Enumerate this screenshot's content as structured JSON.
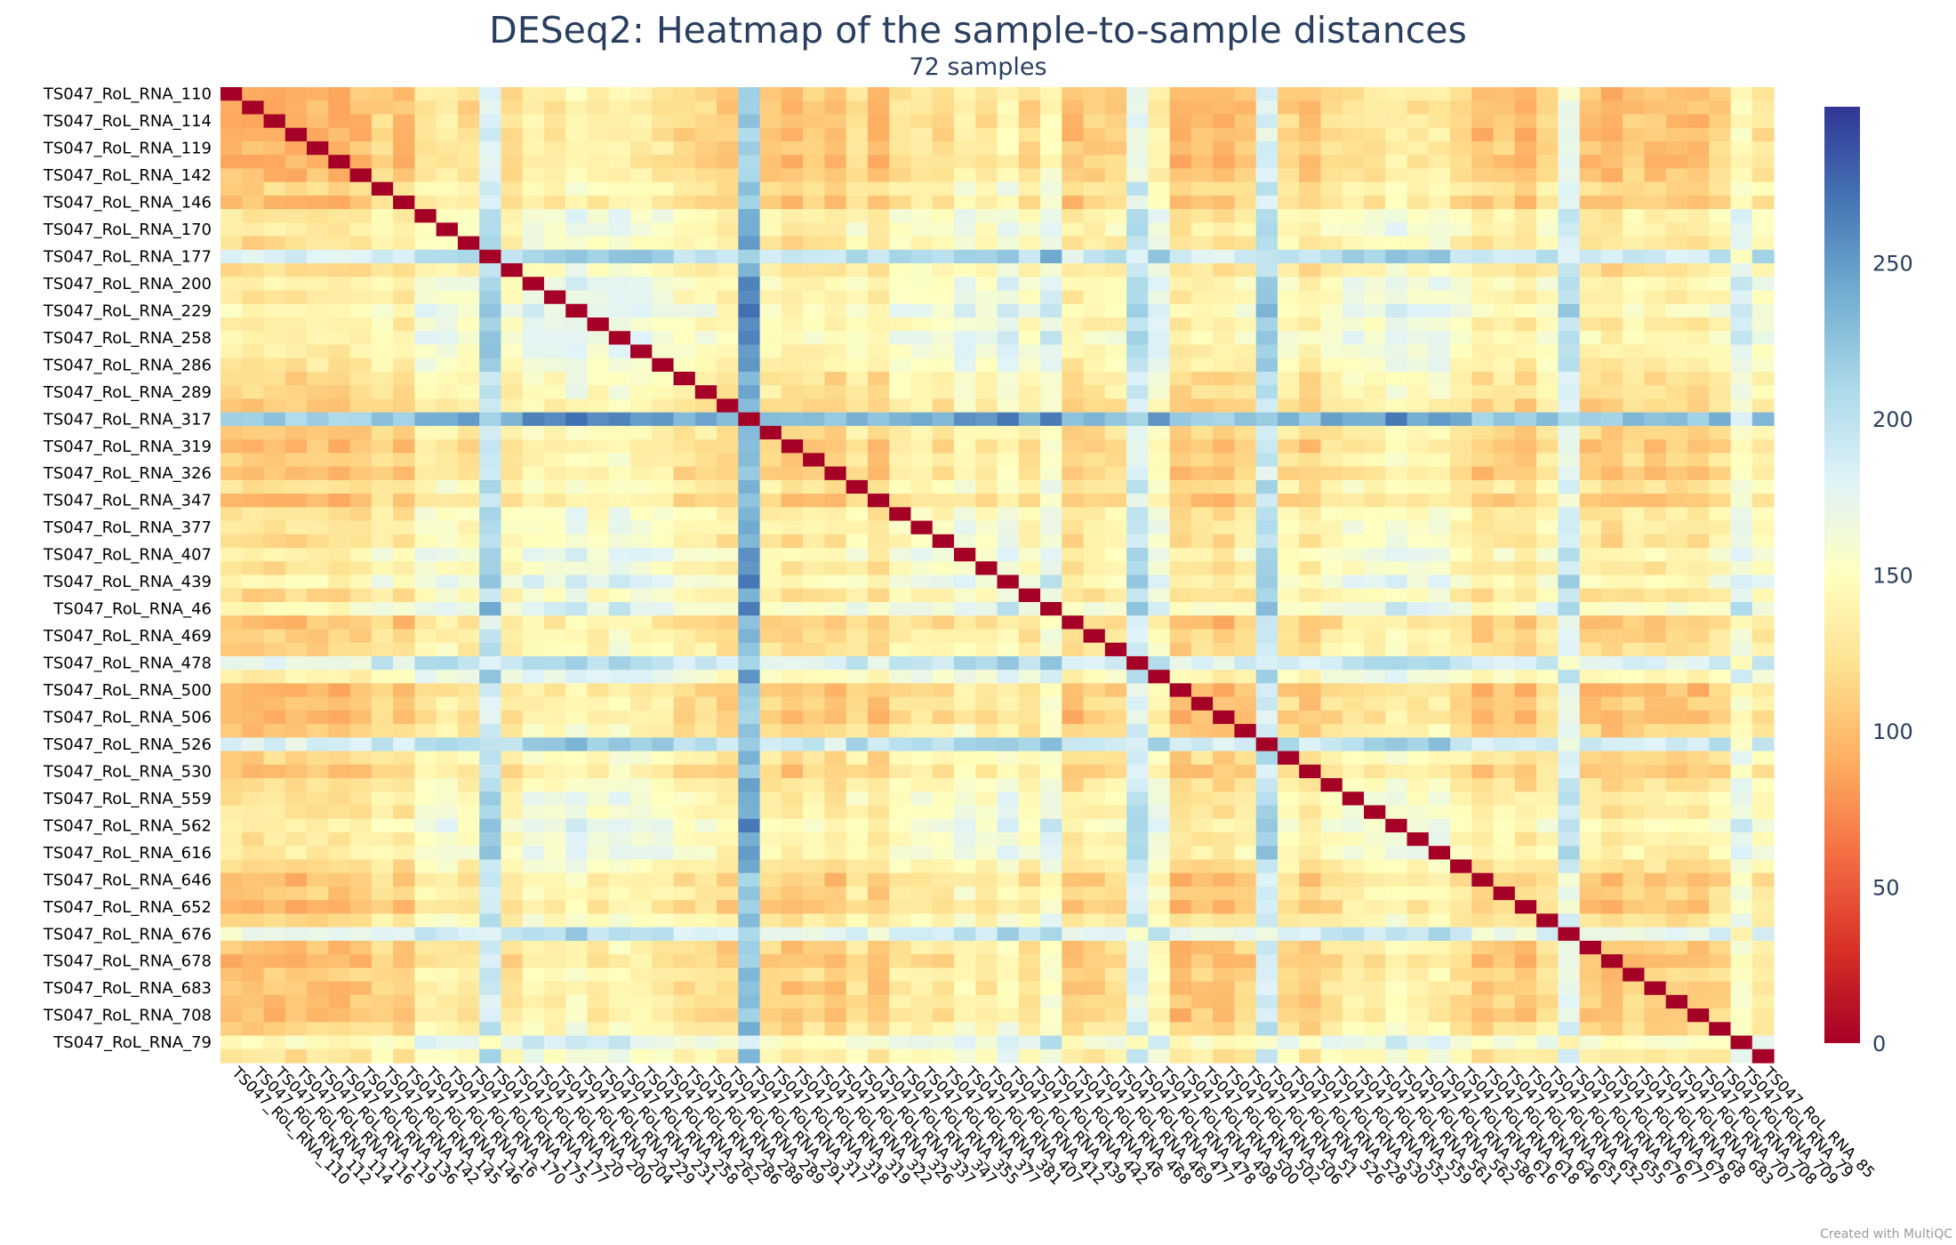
{
  "chart_data": {
    "type": "heatmap",
    "title": "DESeq2: Heatmap of the sample-to-sample distances",
    "subtitle": "72 samples",
    "credit": "Created with MultiQC",
    "colorscale": {
      "stops": [
        "#a50026",
        "#d73027",
        "#f46d43",
        "#fdae61",
        "#fee090",
        "#ffffbf",
        "#e0f3f8",
        "#abd9e9",
        "#74add1",
        "#4575b4",
        "#313695"
      ],
      "min": 0,
      "max": 300,
      "ticks": [
        0,
        50,
        100,
        150,
        200,
        250
      ]
    },
    "samples": [
      "TS047_RoL_RNA_110",
      "TS047_RoL_RNA_112",
      "TS047_RoL_RNA_114",
      "TS047_RoL_RNA_116",
      "TS047_RoL_RNA_119",
      "TS047_RoL_RNA_136",
      "TS047_RoL_RNA_142",
      "TS047_RoL_RNA_145",
      "TS047_RoL_RNA_146",
      "TS047_RoL_RNA_16",
      "TS047_RoL_RNA_170",
      "TS047_RoL_RNA_175",
      "TS047_RoL_RNA_177",
      "TS047_RoL_RNA_20",
      "TS047_RoL_RNA_200",
      "TS047_RoL_RNA_204",
      "TS047_RoL_RNA_229",
      "TS047_RoL_RNA_231",
      "TS047_RoL_RNA_258",
      "TS047_RoL_RNA_262",
      "TS047_RoL_RNA_286",
      "TS047_RoL_RNA_288",
      "TS047_RoL_RNA_289",
      "TS047_RoL_RNA_291",
      "TS047_RoL_RNA_317",
      "TS047_RoL_RNA_318",
      "TS047_RoL_RNA_319",
      "TS047_RoL_RNA_322",
      "TS047_RoL_RNA_326",
      "TS047_RoL_RNA_337",
      "TS047_RoL_RNA_347",
      "TS047_RoL_RNA_355",
      "TS047_RoL_RNA_377",
      "TS047_RoL_RNA_381",
      "TS047_RoL_RNA_407",
      "TS047_RoL_RNA_412",
      "TS047_RoL_RNA_439",
      "TS047_RoL_RNA_442",
      "TS047_RoL_RNA_46",
      "TS047_RoL_RNA_468",
      "TS047_RoL_RNA_469",
      "TS047_RoL_RNA_477",
      "TS047_RoL_RNA_478",
      "TS047_RoL_RNA_498",
      "TS047_RoL_RNA_500",
      "TS047_RoL_RNA_502",
      "TS047_RoL_RNA_506",
      "TS047_RoL_RNA_51",
      "TS047_RoL_RNA_526",
      "TS047_RoL_RNA_528",
      "TS047_RoL_RNA_530",
      "TS047_RoL_RNA_552",
      "TS047_RoL_RNA_559",
      "TS047_RoL_RNA_561",
      "TS047_RoL_RNA_562",
      "TS047_RoL_RNA_586",
      "TS047_RoL_RNA_616",
      "TS047_RoL_RNA_618",
      "TS047_RoL_RNA_646",
      "TS047_RoL_RNA_651",
      "TS047_RoL_RNA_652",
      "TS047_RoL_RNA_655",
      "TS047_RoL_RNA_676",
      "TS047_RoL_RNA_677",
      "TS047_RoL_RNA_678",
      "TS047_RoL_RNA_68",
      "TS047_RoL_RNA_683",
      "TS047_RoL_RNA_707",
      "TS047_RoL_RNA_708",
      "TS047_RoL_RNA_709",
      "TS047_RoL_RNA_79",
      "TS047_RoL_RNA_85"
    ],
    "ylabels_shown": [
      "TS047_RoL_RNA_110",
      "TS047_RoL_RNA_114",
      "TS047_RoL_RNA_119",
      "TS047_RoL_RNA_142",
      "TS047_RoL_RNA_146",
      "TS047_RoL_RNA_170",
      "TS047_RoL_RNA_177",
      "TS047_RoL_RNA_200",
      "TS047_RoL_RNA_229",
      "TS047_RoL_RNA_258",
      "TS047_RoL_RNA_286",
      "TS047_RoL_RNA_289",
      "TS047_RoL_RNA_317",
      "TS047_RoL_RNA_319",
      "TS047_RoL_RNA_326",
      "TS047_RoL_RNA_347",
      "TS047_RoL_RNA_377",
      "TS047_RoL_RNA_407",
      "TS047_RoL_RNA_439",
      "TS047_RoL_RNA_46",
      "TS047_RoL_RNA_469",
      "TS047_RoL_RNA_478",
      "TS047_RoL_RNA_500",
      "TS047_RoL_RNA_506",
      "TS047_RoL_RNA_526",
      "TS047_RoL_RNA_530",
      "TS047_RoL_RNA_559",
      "TS047_RoL_RNA_562",
      "TS047_RoL_RNA_616",
      "TS047_RoL_RNA_646",
      "TS047_RoL_RNA_652",
      "TS047_RoL_RNA_676",
      "TS047_RoL_RNA_678",
      "TS047_RoL_RNA_683",
      "TS047_RoL_RNA_708",
      "TS047_RoL_RNA_79"
    ],
    "xlabels_shown": [
      "TS047_RoL_RNA_110",
      "TS047_RoL_RNA_112",
      "TS047_RoL_RNA_114",
      "TS047_RoL_RNA_116",
      "TS047_RoL_RNA_119",
      "TS047_RoL_RNA_136",
      "TS047_RoL_RNA_142",
      "TS047_RoL_RNA_145",
      "TS047_RoL_RNA_146",
      "TS047_RoL_RNA_16",
      "TS047_RoL_RNA_170",
      "TS047_RoL_RNA_175",
      "TS047_RoL_RNA_177",
      "TS047_RoL_RNA_20",
      "TS047_RoL_RNA_200",
      "TS047_RoL_RNA_204",
      "TS047_RoL_RNA_229",
      "TS047_RoL_RNA_231",
      "TS047_RoL_RNA_258",
      "TS047_RoL_RNA_262",
      "TS047_RoL_RNA_286",
      "TS047_RoL_RNA_288",
      "TS047_RoL_RNA_289",
      "TS047_RoL_RNA_291",
      "TS047_RoL_RNA_317",
      "TS047_RoL_RNA_318",
      "TS047_RoL_RNA_319",
      "TS047_RoL_RNA_322",
      "TS047_RoL_RNA_326",
      "TS047_RoL_RNA_337",
      "TS047_RoL_RNA_347",
      "TS047_RoL_RNA_355",
      "TS047_RoL_RNA_377",
      "TS047_RoL_RNA_381",
      "TS047_RoL_RNA_407",
      "TS047_RoL_RNA_412",
      "TS047_RoL_RNA_439",
      "TS047_RoL_RNA_442",
      "TS047_RoL_RNA_46",
      "TS047_RoL_RNA_468",
      "TS047_RoL_RNA_469",
      "TS047_RoL_RNA_477",
      "TS047_RoL_RNA_478",
      "TS047_RoL_RNA_498",
      "TS047_RoL_RNA_500",
      "TS047_RoL_RNA_502",
      "TS047_RoL_RNA_506",
      "TS047_RoL_RNA_51",
      "TS047_RoL_RNA_526",
      "TS047_RoL_RNA_528",
      "TS047_RoL_RNA_530",
      "TS047_RoL_RNA_552",
      "TS047_RoL_RNA_559",
      "TS047_RoL_RNA_561",
      "TS047_RoL_RNA_562",
      "TS047_RoL_RNA_586",
      "TS047_RoL_RNA_616",
      "TS047_RoL_RNA_618",
      "TS047_RoL_RNA_646",
      "TS047_RoL_RNA_651",
      "TS047_RoL_RNA_652",
      "TS047_RoL_RNA_655",
      "TS047_RoL_RNA_676",
      "TS047_RoL_RNA_677",
      "TS047_RoL_RNA_678",
      "TS047_RoL_RNA_68",
      "TS047_RoL_RNA_683",
      "TS047_RoL_RNA_707",
      "TS047_RoL_RNA_708",
      "TS047_RoL_RNA_709",
      "TS047_RoL_RNA_79",
      "TS047_RoL_RNA_85"
    ],
    "sample_profile": [
      120,
      118,
      120,
      118,
      122,
      118,
      122,
      138,
      122,
      150,
      152,
      142,
      205,
      140,
      158,
      152,
      165,
      150,
      162,
      155,
      152,
      138,
      140,
      128,
      240,
      132,
      122,
      130,
      122,
      142,
      122,
      145,
      148,
      140,
      160,
      145,
      165,
      140,
      170,
      122,
      130,
      135,
      195,
      160,
      118,
      125,
      118,
      130,
      205,
      138,
      125,
      140,
      150,
      148,
      160,
      150,
      155,
      140,
      122,
      132,
      122,
      140,
      190,
      125,
      118,
      130,
      125,
      125,
      122,
      135,
      170,
      145
    ],
    "strong_outliers": [
      "TS047_RoL_RNA_317",
      "TS047_RoL_RNA_177",
      "TS047_RoL_RNA_478",
      "TS047_RoL_RNA_526",
      "TS047_RoL_RNA_676",
      "TS047_RoL_RNA_79"
    ],
    "min_value": 0,
    "max_value": 295,
    "diagonal_value": 0
  }
}
